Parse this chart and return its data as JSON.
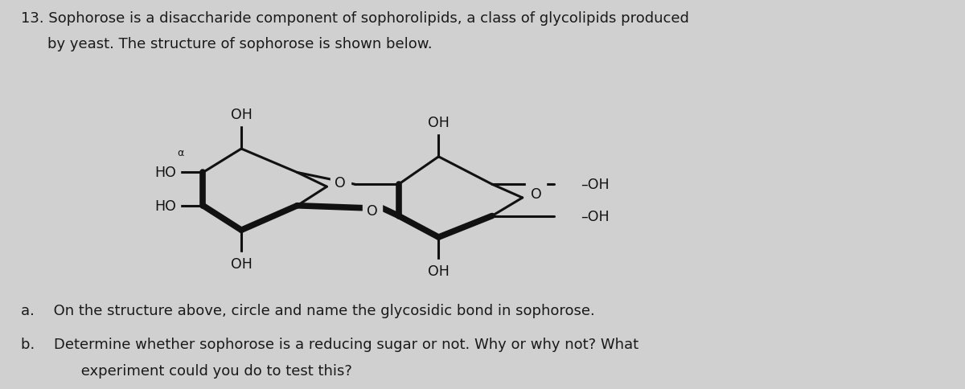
{
  "background_color": "#d0d0d0",
  "text_color": "#1a1a1a",
  "figsize": [
    12.0,
    4.85
  ],
  "dpi": 100,
  "title_line1": "13. Sophorose is a disaccharide component of sophorolipids, a class of glycolipids produced",
  "title_line2": "by yeast. The structure of sophorose is shown below.",
  "question_a": "a.  On the structure above, circle and name the glycosidic bond in sophorose.",
  "question_b_line1": "b.  Determine whether sophorose is a reducing sugar or not. Why or why not? What",
  "question_b_line2": "   experiment could you do to test this?"
}
